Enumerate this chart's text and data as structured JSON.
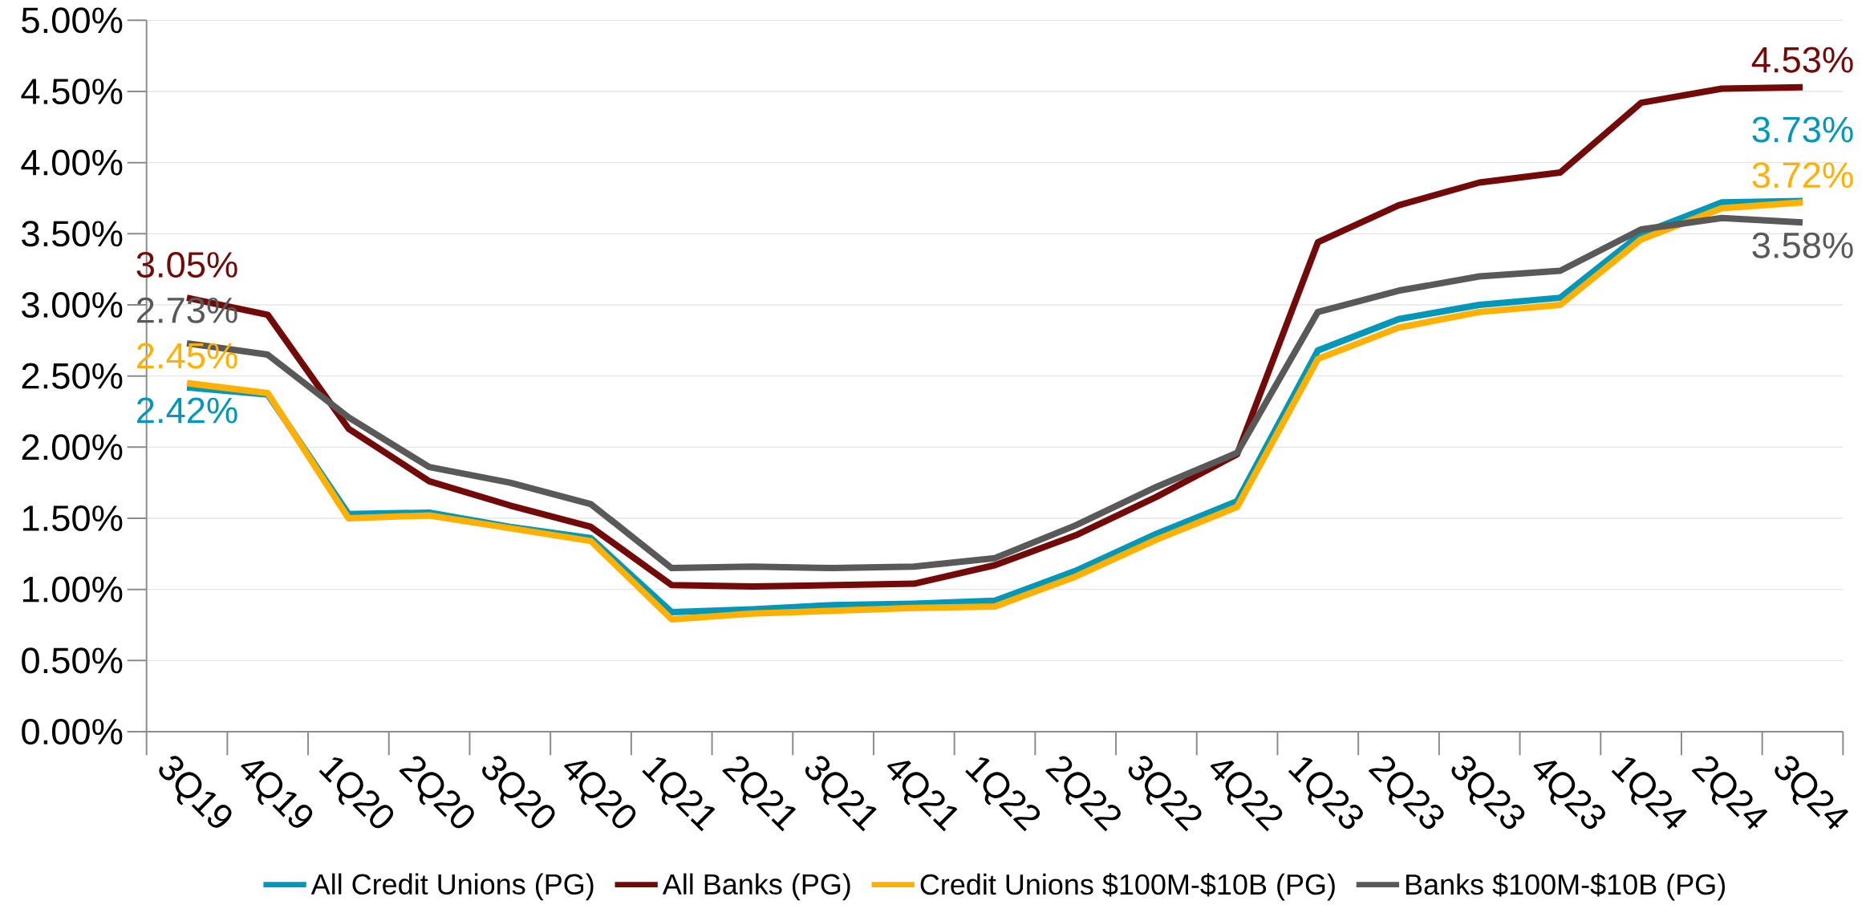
{
  "chart_data": {
    "type": "line",
    "categories": [
      "3Q19",
      "4Q19",
      "1Q20",
      "2Q20",
      "3Q20",
      "4Q20",
      "1Q21",
      "2Q21",
      "3Q21",
      "4Q21",
      "1Q22",
      "2Q22",
      "3Q22",
      "4Q22",
      "1Q23",
      "2Q23",
      "3Q23",
      "4Q23",
      "1Q24",
      "2Q24",
      "3Q24"
    ],
    "series": [
      {
        "name": "All Credit Unions (PG)",
        "color": "#0097b9",
        "values": [
          2.42,
          2.37,
          1.53,
          1.54,
          1.44,
          1.36,
          0.84,
          0.86,
          0.89,
          0.9,
          0.92,
          1.13,
          1.39,
          1.62,
          2.68,
          2.9,
          3.0,
          3.05,
          3.5,
          3.72,
          3.73
        ],
        "value_labels": [
          "2.42%",
          null,
          null,
          null,
          null,
          null,
          null,
          null,
          null,
          null,
          null,
          null,
          null,
          null,
          null,
          null,
          null,
          null,
          null,
          null,
          "3.73%"
        ]
      },
      {
        "name": "All Banks (PG)",
        "color": "#720a0a",
        "values": [
          3.05,
          2.93,
          2.13,
          1.76,
          1.59,
          1.44,
          1.03,
          1.02,
          1.03,
          1.04,
          1.17,
          1.38,
          1.65,
          1.95,
          3.44,
          3.7,
          3.86,
          3.93,
          4.42,
          4.52,
          4.53
        ],
        "value_labels": [
          "3.05%",
          null,
          null,
          null,
          null,
          null,
          null,
          null,
          null,
          null,
          null,
          null,
          null,
          null,
          null,
          null,
          null,
          null,
          null,
          null,
          "4.53%"
        ]
      },
      {
        "name": "Credit Unions $100M-$10B (PG)",
        "color": "#ffb000",
        "values": [
          2.45,
          2.38,
          1.5,
          1.52,
          1.43,
          1.34,
          0.79,
          0.83,
          0.85,
          0.87,
          0.88,
          1.09,
          1.35,
          1.58,
          2.62,
          2.84,
          2.95,
          3.0,
          3.46,
          3.68,
          3.72
        ],
        "value_labels": [
          "2.45%",
          null,
          null,
          null,
          null,
          null,
          null,
          null,
          null,
          null,
          null,
          null,
          null,
          null,
          null,
          null,
          null,
          null,
          null,
          null,
          "3.72%"
        ]
      },
      {
        "name": "Banks $100M-$10B (PG)",
        "color": "#595959",
        "values": [
          2.73,
          2.65,
          2.21,
          1.86,
          1.75,
          1.6,
          1.15,
          1.16,
          1.15,
          1.16,
          1.22,
          1.45,
          1.72,
          1.96,
          2.95,
          3.1,
          3.2,
          3.24,
          3.53,
          3.61,
          3.58
        ],
        "value_labels": [
          "2.73%",
          null,
          null,
          null,
          null,
          null,
          null,
          null,
          null,
          null,
          null,
          null,
          null,
          null,
          null,
          null,
          null,
          null,
          null,
          null,
          "3.58%"
        ]
      }
    ],
    "ylim": [
      0,
      5
    ],
    "yticks": [
      {
        "value": 0,
        "label": "0.00%"
      },
      {
        "value": 0.5,
        "label": "0.50%"
      },
      {
        "value": 1,
        "label": "1.00%"
      },
      {
        "value": 1.5,
        "label": "1.50%"
      },
      {
        "value": 2,
        "label": "2.00%"
      },
      {
        "value": 2.5,
        "label": "2.50%"
      },
      {
        "value": 3,
        "label": "3.00%"
      },
      {
        "value": 3.5,
        "label": "3.50%"
      },
      {
        "value": 4,
        "label": "4.00%"
      },
      {
        "value": 4.5,
        "label": "4.50%"
      },
      {
        "value": 5,
        "label": "5.00%"
      }
    ],
    "grid": "y",
    "legend": "bottom",
    "marker": "none",
    "line_style": "solid"
  }
}
